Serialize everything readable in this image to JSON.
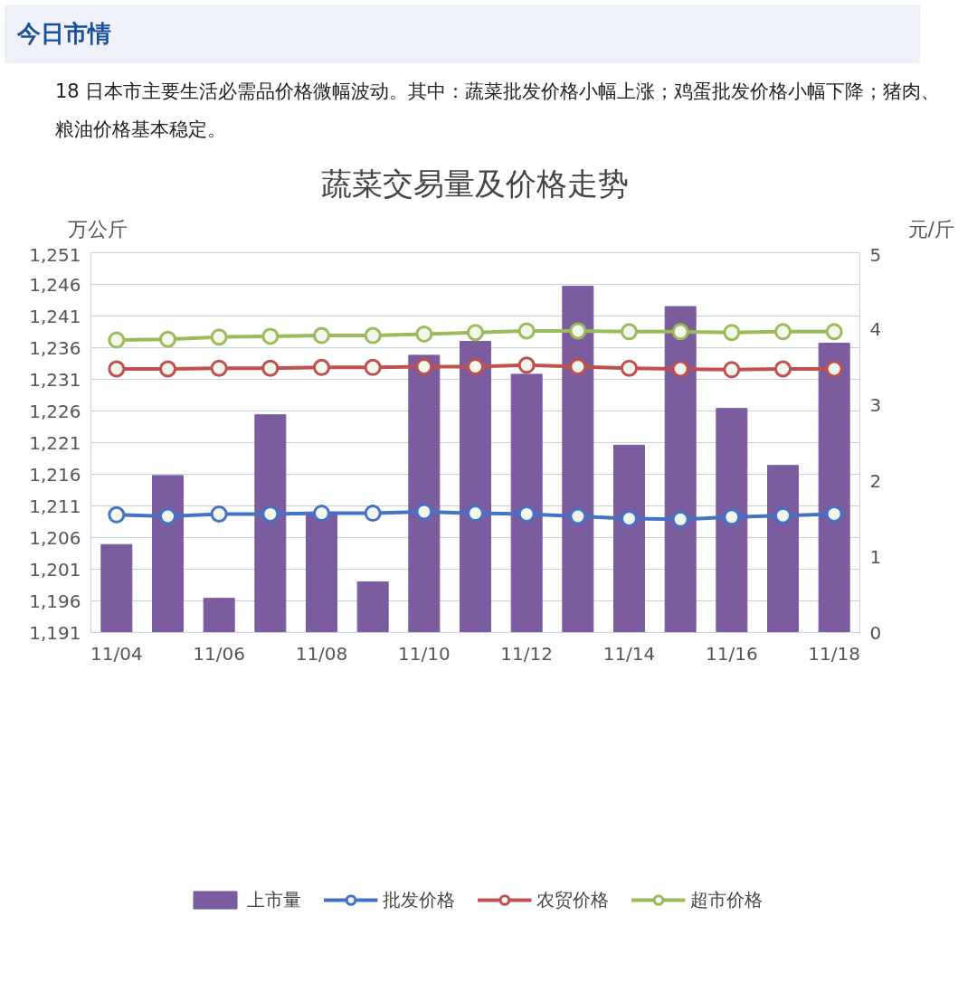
{
  "chart_data": {
    "type": "bar",
    "title": "蔬菜交易量及价格走势",
    "ylabel": "万公斤",
    "y2label": "元/斤",
    "annotations": [
      "今日市情",
      "18 日本市主要生活必需品价格微幅波动。其中：蔬菜批发价格小幅上涨；鸡蛋批发价格小幅下降；猪肉、粮油价格基本稳定。"
    ],
    "categories": [
      "11/04",
      null,
      "11/06",
      null,
      "11/08",
      null,
      "11/10",
      null,
      "11/12",
      null,
      "11/14",
      null,
      "11/16",
      null,
      "11/18"
    ],
    "series": [
      {
        "name": "上市量",
        "color": "#7b5c9e",
        "values": [
          1204.9,
          1215.8,
          1196.4,
          1225.4,
          1209.7,
          1199.0,
          1234.8,
          1237.0,
          1231.8,
          1245.7,
          1220.6,
          1242.5,
          1226.4,
          1217.4,
          1236.7
        ]
      },
      {
        "name": "批发价格",
        "type": "line",
        "axis": "y2",
        "color": "#4472c4",
        "values": [
          1.55,
          1.53,
          1.56,
          1.56,
          1.57,
          1.57,
          1.59,
          1.57,
          1.56,
          1.53,
          1.5,
          1.49,
          1.52,
          1.54,
          1.56
        ]
      },
      {
        "name": "农贸价格",
        "type": "line",
        "axis": "y2",
        "color": "#c0504d",
        "values": [
          3.47,
          3.47,
          3.48,
          3.48,
          3.49,
          3.49,
          3.5,
          3.5,
          3.52,
          3.5,
          3.48,
          3.47,
          3.46,
          3.47,
          3.47
        ]
      },
      {
        "name": "超市价格",
        "type": "line",
        "axis": "y2",
        "color": "#9bbb59",
        "values": [
          3.85,
          3.86,
          3.89,
          3.9,
          3.91,
          3.91,
          3.93,
          3.95,
          3.97,
          3.97,
          3.96,
          3.96,
          3.95,
          3.96,
          3.96
        ]
      }
    ],
    "ylim": [
      1191,
      1251
    ],
    "yticks": [
      {
        "value": 1191,
        "label": "1,191"
      },
      {
        "value": 1196,
        "label": "1,196"
      },
      {
        "value": 1201,
        "label": "1,201"
      },
      {
        "value": 1206,
        "label": "1,206"
      },
      {
        "value": 1211,
        "label": "1,211"
      },
      {
        "value": 1216,
        "label": "1,216"
      },
      {
        "value": 1221,
        "label": "1,221"
      },
      {
        "value": 1226,
        "label": "1,226"
      },
      {
        "value": 1231,
        "label": "1,231"
      },
      {
        "value": 1236,
        "label": "1,236"
      },
      {
        "value": 1241,
        "label": "1,241"
      },
      {
        "value": 1246,
        "label": "1,246"
      },
      {
        "value": 1251,
        "label": "1,251"
      }
    ],
    "y2lim": [
      0,
      5
    ],
    "y2ticks": [
      0,
      1,
      2,
      3,
      4,
      5
    ],
    "grid": "y",
    "legend": "bottom",
    "marker": "circle",
    "line_style": "solid"
  }
}
